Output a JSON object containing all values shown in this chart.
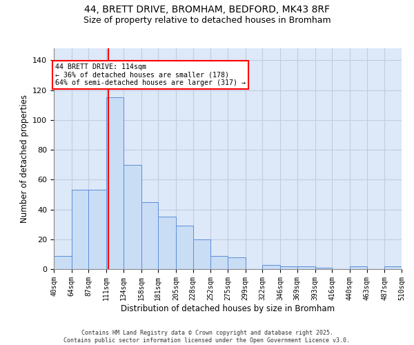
{
  "title1": "44, BRETT DRIVE, BROMHAM, BEDFORD, MK43 8RF",
  "title2": "Size of property relative to detached houses in Bromham",
  "xlabel": "Distribution of detached houses by size in Bromham",
  "ylabel": "Number of detached properties",
  "bin_edges": [
    40,
    64,
    87,
    111,
    134,
    158,
    181,
    205,
    228,
    252,
    275,
    299,
    322,
    346,
    369,
    393,
    416,
    440,
    463,
    487,
    510
  ],
  "heights": [
    9,
    53,
    53,
    115,
    70,
    45,
    35,
    29,
    20,
    9,
    8,
    0,
    3,
    2,
    2,
    1,
    0,
    2,
    0,
    2
  ],
  "bar_color": "#c9ddf5",
  "bar_edge_color": "#5b8dd9",
  "ref_line_x": 114,
  "ref_line_color": "red",
  "annotation_text": "44 BRETT DRIVE: 114sqm\n← 36% of detached houses are smaller (178)\n64% of semi-detached houses are larger (317) →",
  "ylim": [
    0,
    148
  ],
  "yticks": [
    0,
    20,
    40,
    60,
    80,
    100,
    120,
    140
  ],
  "grid_color": "#c0cce0",
  "bg_color": "#dde8f8",
  "footer": "Contains HM Land Registry data © Crown copyright and database right 2025.\nContains public sector information licensed under the Open Government Licence v3.0.",
  "cat_labels": [
    "40sqm",
    "64sqm",
    "87sqm",
    "111sqm",
    "134sqm",
    "158sqm",
    "181sqm",
    "205sqm",
    "228sqm",
    "252sqm",
    "275sqm",
    "299sqm",
    "322sqm",
    "346sqm",
    "369sqm",
    "393sqm",
    "416sqm",
    "440sqm",
    "463sqm",
    "487sqm",
    "510sqm"
  ]
}
